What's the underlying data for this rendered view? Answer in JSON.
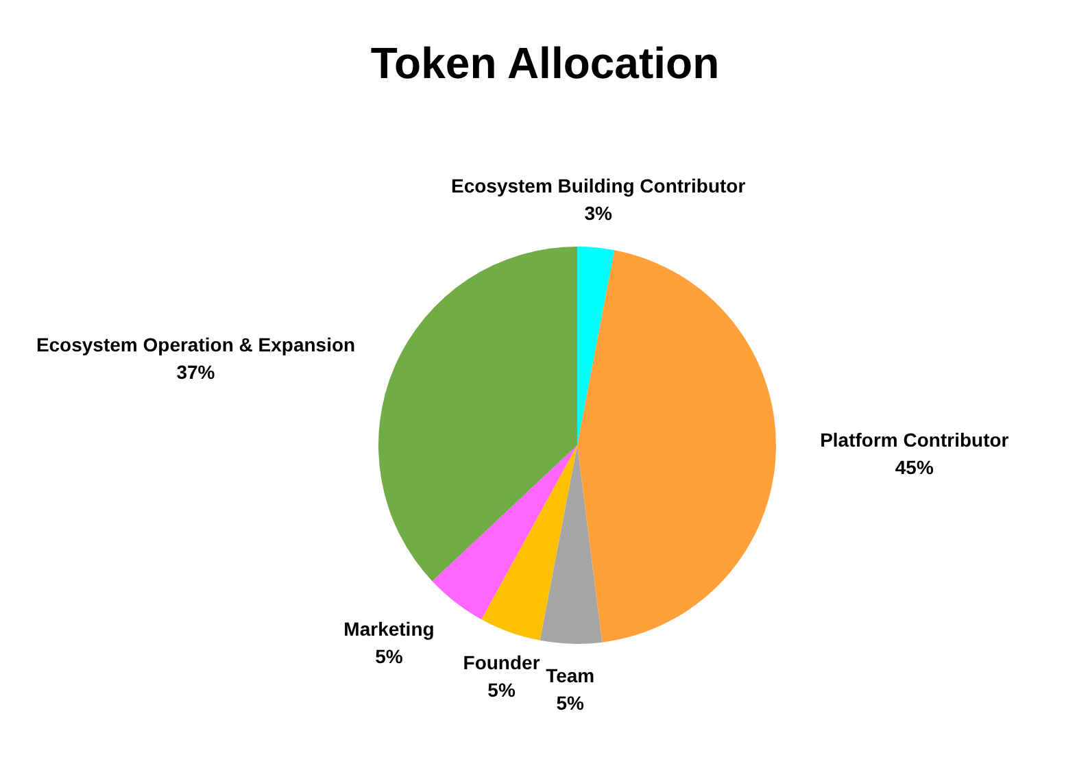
{
  "chart_data": {
    "type": "pie",
    "title": "Token Allocation",
    "categories": [
      "Ecosystem Building Contributor",
      "Platform Contributor",
      "Team",
      "Founder",
      "Marketing",
      "Ecosystem Operation & Expansion"
    ],
    "values": [
      3,
      45,
      5,
      5,
      5,
      37
    ],
    "value_labels": [
      "3%",
      "45%",
      "5%",
      "5%",
      "5%",
      "37%"
    ],
    "colors": [
      "#00ffff",
      "#ff9f3a",
      "#a5a5a5",
      "#ffc000",
      "#ff66ff",
      "#70ad47"
    ]
  }
}
